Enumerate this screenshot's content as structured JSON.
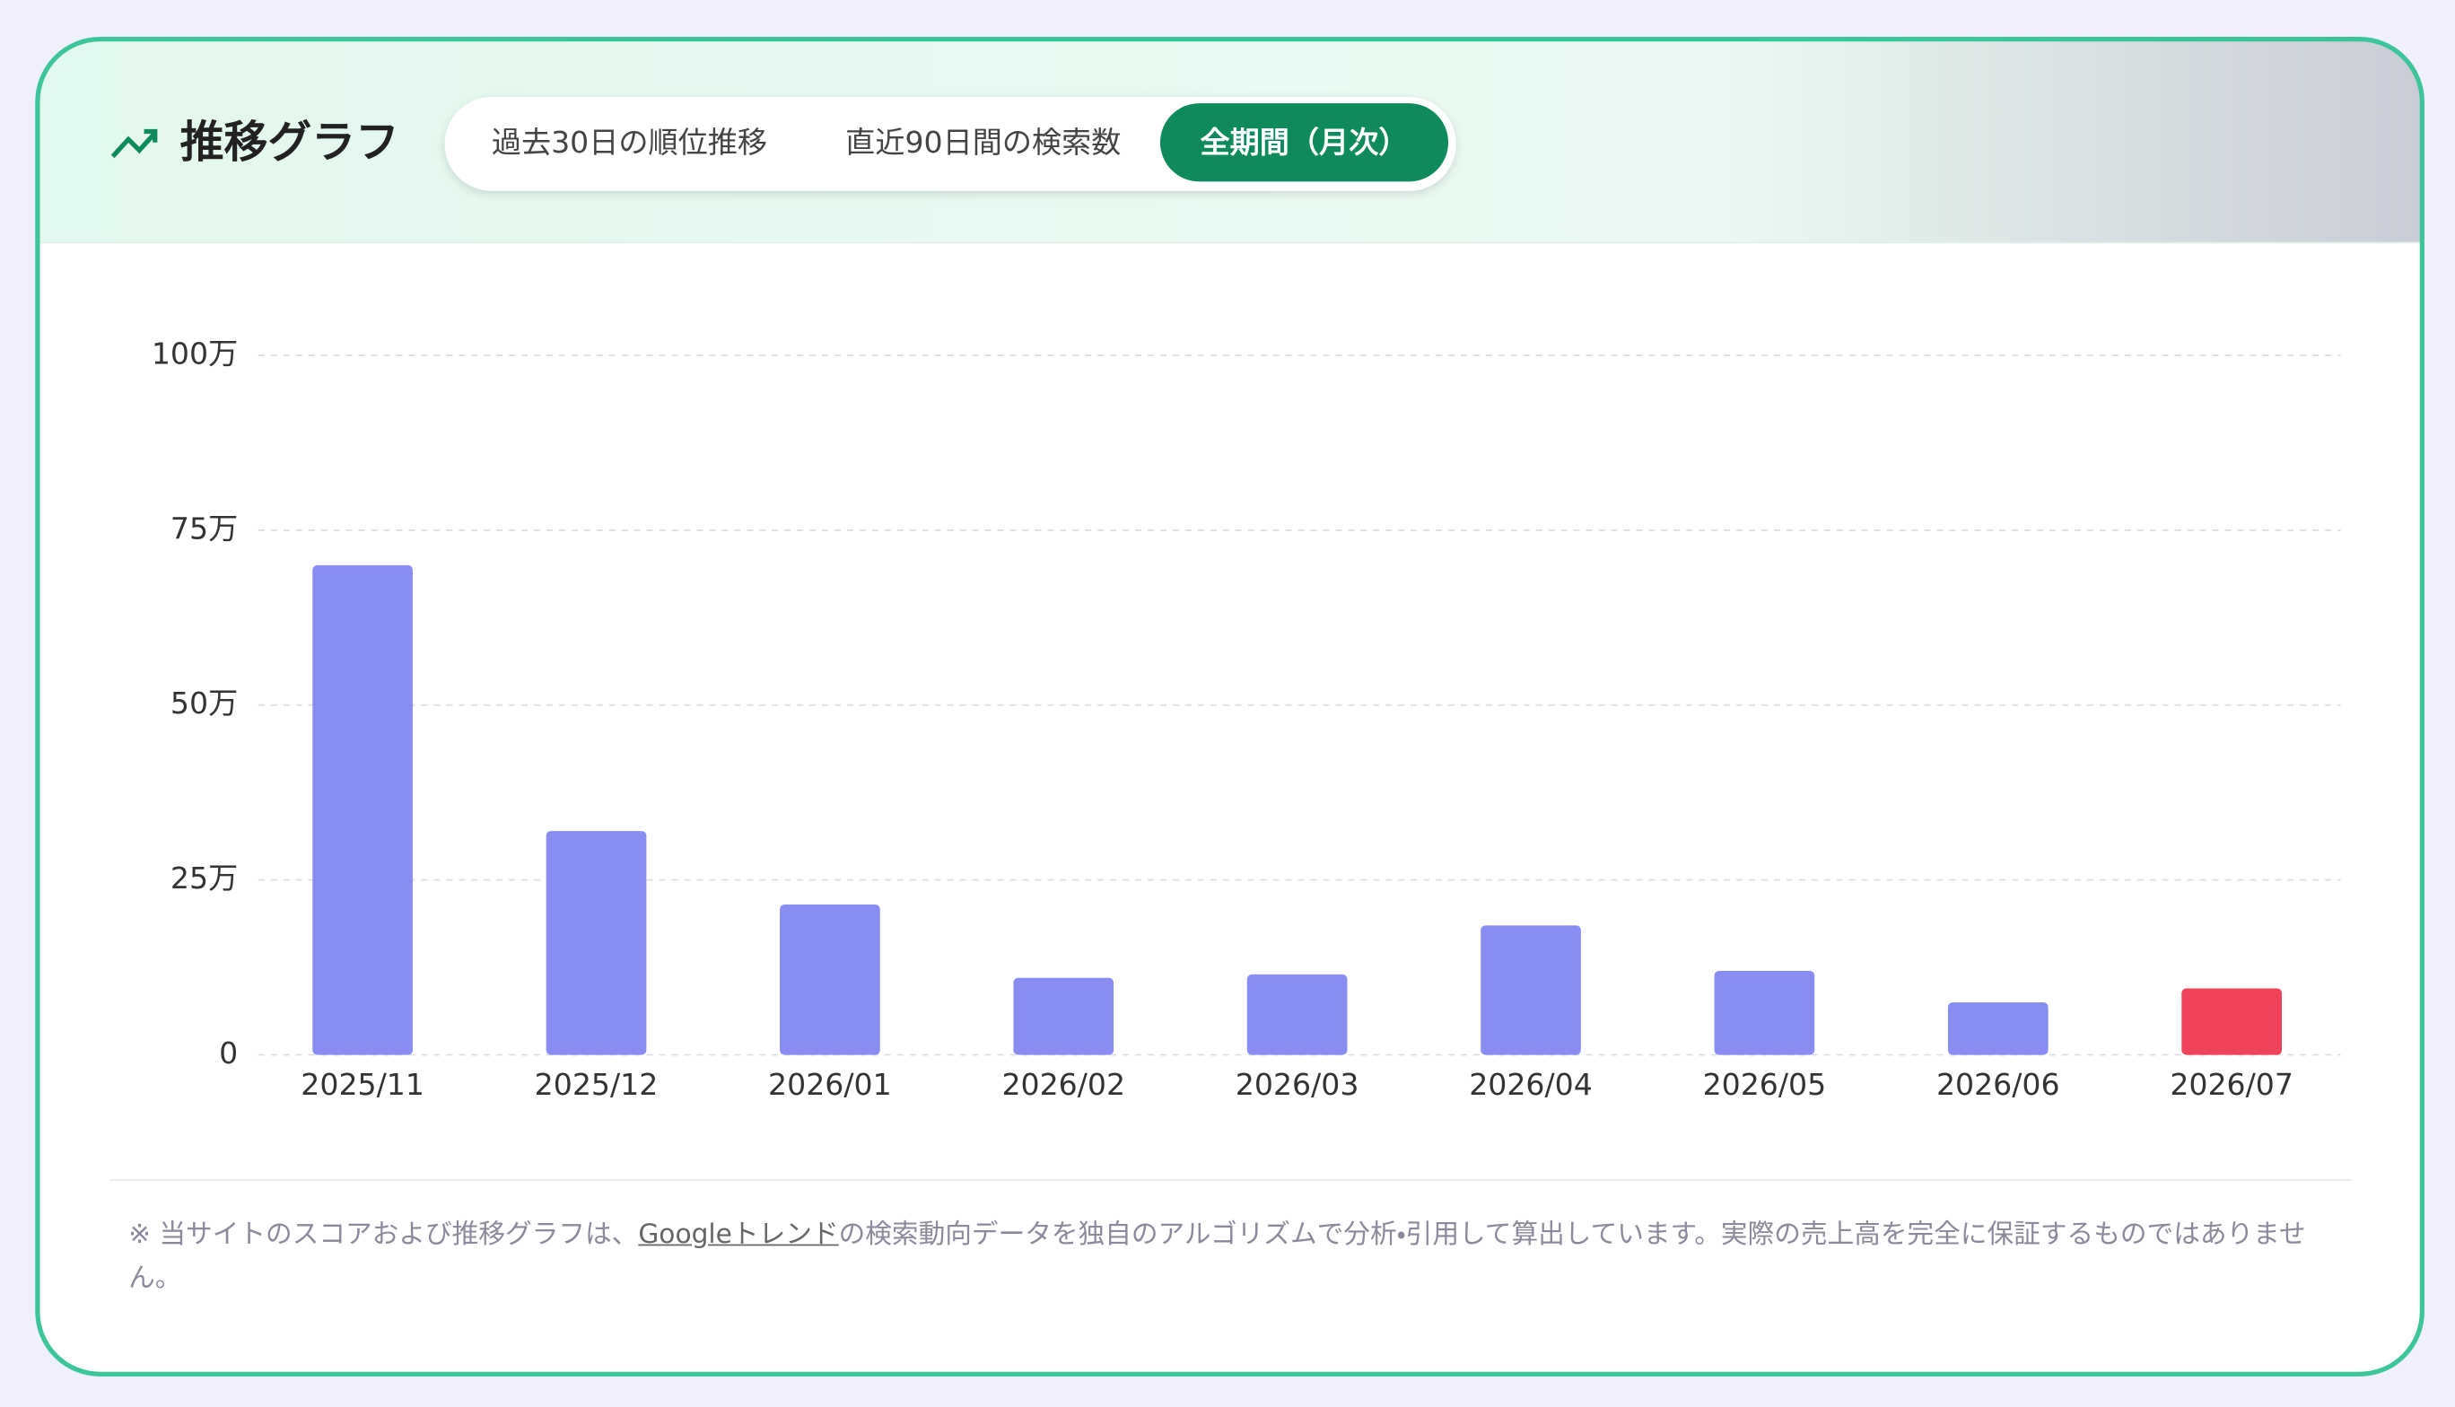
{
  "header": {
    "title": "推移グラフ"
  },
  "tabs": [
    "過去30日の順位推移",
    "直近90日間の検索数",
    "全期間（月次）"
  ],
  "active_tab": 2,
  "chart_data": {
    "type": "bar",
    "categories": [
      "2025/11",
      "2025/12",
      "2026/01",
      "2026/02",
      "2026/03",
      "2026/04",
      "2026/05",
      "2026/06",
      "2026/07"
    ],
    "values": [
      70,
      32,
      21.5,
      11,
      11.5,
      18.5,
      12,
      7.5,
      9.5
    ],
    "colors": [
      "#898cf1",
      "#898cf1",
      "#898cf1",
      "#898cf1",
      "#898cf1",
      "#898cf1",
      "#898cf1",
      "#898cf1",
      "#f0435a"
    ],
    "ylim": [
      0,
      100
    ],
    "yticks": [
      0,
      {
        "value": 25,
        "label": "25万"
      },
      {
        "value": 50,
        "label": "50万"
      },
      {
        "value": 75,
        "label": "75万"
      },
      {
        "value": 100,
        "label": "100万"
      }
    ],
    "grid": true
  },
  "footnote": {
    "before": "※ 当サイトのスコアおよび推移グラフは、",
    "link": "Googleトレンド",
    "after": "の検索動向データを独自のアルゴリズムで分析・引用して算出しています。実際の売上高を完全に保証するものではありません。"
  }
}
